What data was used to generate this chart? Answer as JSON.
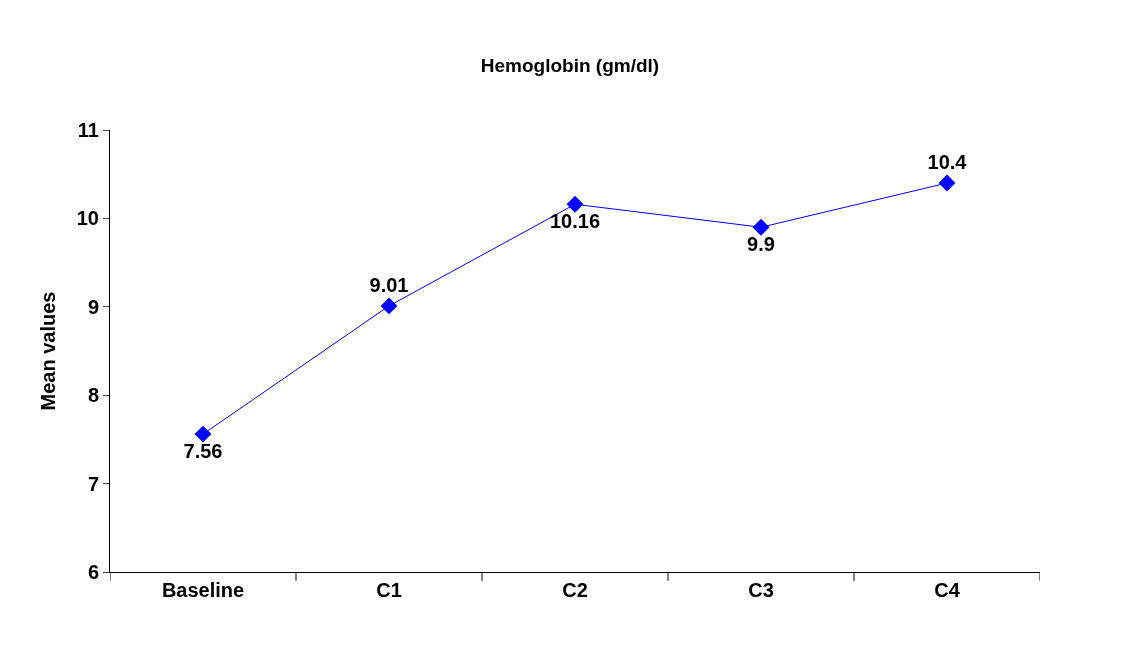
{
  "chart_data": {
    "type": "line",
    "title": "Hemoglobin (gm/dl)",
    "ylabel": "Mean values",
    "categories": [
      "Baseline",
      "C1",
      "C2",
      "C3",
      "C4"
    ],
    "series": [
      {
        "color": "#0000ff",
        "values": [
          7.56,
          9.01,
          10.16,
          9.9,
          10.4
        ]
      }
    ],
    "ylim": [
      6,
      11
    ],
    "yticks": [
      6,
      7,
      8,
      9,
      10,
      11
    ],
    "marker": "diamond",
    "line_style": "solid",
    "data_labels": true
  }
}
